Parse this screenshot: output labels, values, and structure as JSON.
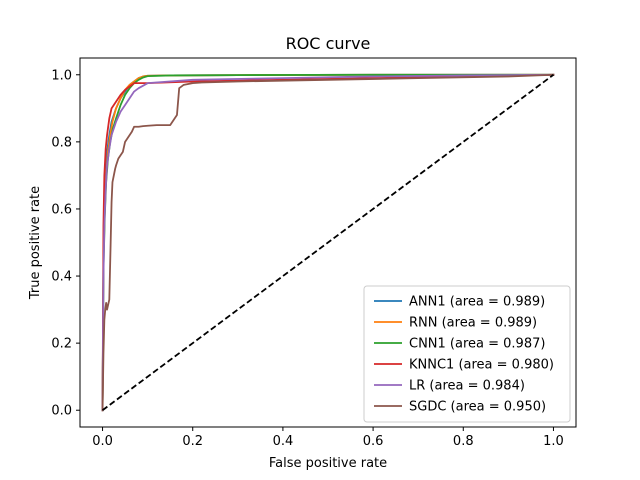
{
  "chart_data": {
    "type": "line",
    "title": "ROC curve",
    "xlabel": "False positive rate",
    "ylabel": "True positive rate",
    "xlim": [
      -0.05,
      1.05
    ],
    "ylim": [
      -0.05,
      1.05
    ],
    "xticks": [
      0.0,
      0.2,
      0.4,
      0.6,
      0.8,
      1.0
    ],
    "yticks": [
      0.0,
      0.2,
      0.4,
      0.6,
      0.8,
      1.0
    ],
    "xtick_labels": [
      "0.0",
      "0.2",
      "0.4",
      "0.6",
      "0.8",
      "1.0"
    ],
    "ytick_labels": [
      "0.0",
      "0.2",
      "0.4",
      "0.6",
      "0.8",
      "1.0"
    ],
    "grid": false,
    "legend_position": "lower right",
    "series": [
      {
        "name": "ANN1 (area = 0.989)",
        "color": "#1f77b4",
        "x": [
          0,
          0.002,
          0.004,
          0.007,
          0.01,
          0.015,
          0.02,
          0.03,
          0.04,
          0.05,
          0.06,
          0.07,
          0.08,
          0.09,
          0.1,
          0.15,
          0.3,
          0.6,
          1.0
        ],
        "y": [
          0,
          0.45,
          0.6,
          0.7,
          0.77,
          0.82,
          0.86,
          0.9,
          0.93,
          0.95,
          0.97,
          0.98,
          0.99,
          0.995,
          0.997,
          0.998,
          0.999,
          1.0,
          1.0
        ]
      },
      {
        "name": "RNN (area = 0.989)",
        "color": "#ff7f0e",
        "x": [
          0,
          0.002,
          0.005,
          0.008,
          0.012,
          0.017,
          0.022,
          0.03,
          0.04,
          0.05,
          0.06,
          0.07,
          0.08,
          0.09,
          0.1,
          0.15,
          0.3,
          0.6,
          1.0
        ],
        "y": [
          0,
          0.45,
          0.6,
          0.7,
          0.77,
          0.82,
          0.86,
          0.9,
          0.93,
          0.955,
          0.97,
          0.98,
          0.99,
          0.995,
          0.997,
          0.998,
          0.999,
          1.0,
          1.0
        ]
      },
      {
        "name": "CNN1 (area = 0.987)",
        "color": "#2ca02c",
        "x": [
          0,
          0.002,
          0.005,
          0.008,
          0.012,
          0.017,
          0.023,
          0.03,
          0.04,
          0.05,
          0.06,
          0.07,
          0.08,
          0.09,
          0.1,
          0.15,
          0.3,
          0.6,
          1.0
        ],
        "y": [
          0,
          0.42,
          0.58,
          0.68,
          0.75,
          0.8,
          0.84,
          0.87,
          0.91,
          0.94,
          0.96,
          0.975,
          0.985,
          0.992,
          0.996,
          0.998,
          0.999,
          1.0,
          1.0
        ]
      },
      {
        "name": "KNNC1 (area = 0.980)",
        "color": "#d62728",
        "x": [
          0,
          0.002,
          0.004,
          0.007,
          0.01,
          0.015,
          0.02,
          0.03,
          0.04,
          0.05,
          0.06,
          0.07,
          0.1,
          0.2,
          0.4,
          0.6,
          0.8,
          1.0
        ],
        "y": [
          0,
          0.55,
          0.7,
          0.78,
          0.82,
          0.87,
          0.9,
          0.92,
          0.94,
          0.955,
          0.965,
          0.975,
          0.975,
          0.98,
          0.985,
          0.99,
          0.995,
          1.0
        ]
      },
      {
        "name": "LR (area = 0.984)",
        "color": "#9467bd",
        "x": [
          0,
          0.002,
          0.004,
          0.007,
          0.01,
          0.015,
          0.02,
          0.03,
          0.04,
          0.05,
          0.06,
          0.07,
          0.08,
          0.1,
          0.2,
          0.4,
          0.6,
          0.8,
          1.0
        ],
        "y": [
          0,
          0.4,
          0.55,
          0.66,
          0.73,
          0.78,
          0.82,
          0.86,
          0.89,
          0.91,
          0.93,
          0.95,
          0.96,
          0.975,
          0.985,
          0.99,
          0.995,
          0.998,
          1.0
        ]
      },
      {
        "name": "SGDC (area = 0.950)",
        "color": "#8c564b",
        "x": [
          0,
          0.002,
          0.004,
          0.006,
          0.008,
          0.01,
          0.015,
          0.018,
          0.02,
          0.022,
          0.025,
          0.028,
          0.03,
          0.035,
          0.04,
          0.045,
          0.05,
          0.055,
          0.06,
          0.065,
          0.07,
          0.08,
          0.09,
          0.1,
          0.12,
          0.15,
          0.16,
          0.165,
          0.17,
          0.18,
          0.2,
          0.22,
          0.3,
          0.5,
          0.7,
          0.9,
          1.0
        ],
        "y": [
          0,
          0.17,
          0.27,
          0.3,
          0.32,
          0.3,
          0.33,
          0.5,
          0.62,
          0.68,
          0.7,
          0.72,
          0.73,
          0.75,
          0.76,
          0.77,
          0.8,
          0.81,
          0.82,
          0.83,
          0.845,
          0.845,
          0.847,
          0.848,
          0.85,
          0.85,
          0.87,
          0.88,
          0.96,
          0.97,
          0.975,
          0.977,
          0.98,
          0.985,
          0.99,
          0.995,
          1.0
        ]
      }
    ],
    "reference_line": {
      "x": [
        0,
        1
      ],
      "y": [
        0,
        1
      ],
      "color": "#000000",
      "style": "dashed"
    }
  }
}
